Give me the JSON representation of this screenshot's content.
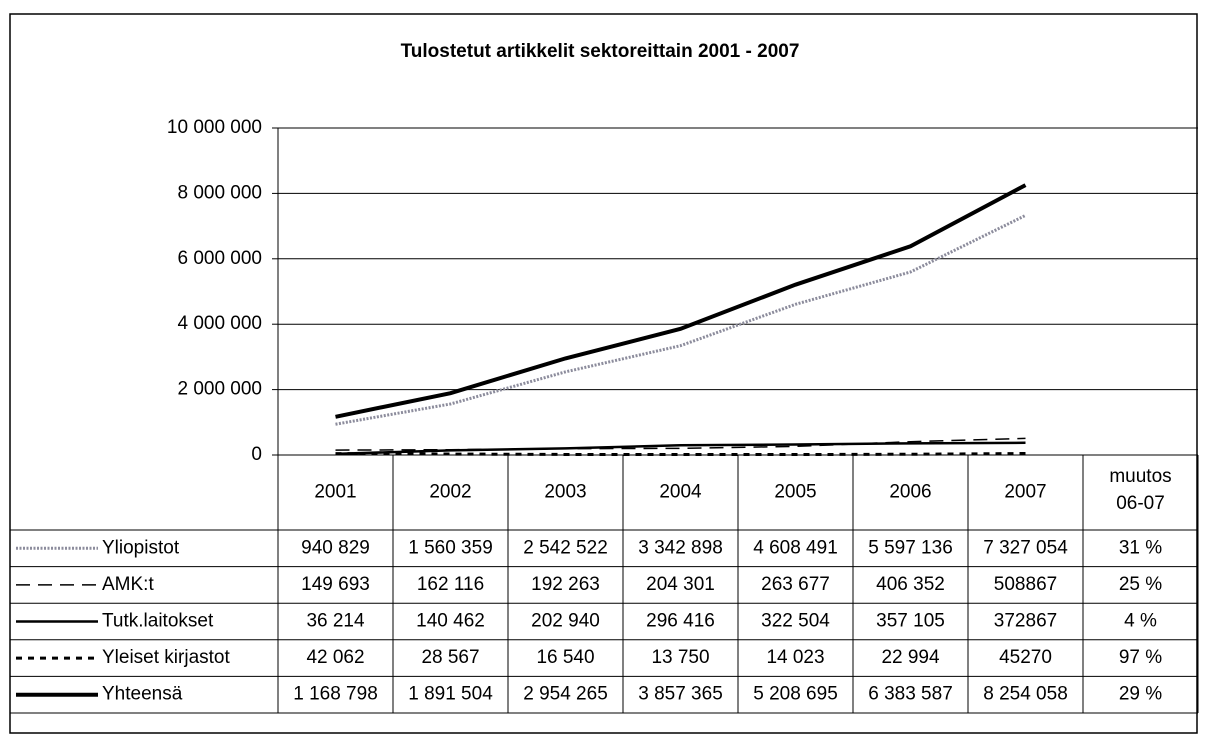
{
  "chart_data": {
    "type": "line",
    "title": "Tulostetut artikkelit sektoreittain 2001 - 2007",
    "categories": [
      "2001",
      "2002",
      "2003",
      "2004",
      "2005",
      "2006",
      "2007"
    ],
    "change_header": "muutos 06-07",
    "ylim": [
      0,
      10000000
    ],
    "yticks": [
      0,
      {
        "value": 2000000,
        "label": "2 000 000"
      },
      {
        "value": 4000000,
        "label": "4 000 000"
      },
      {
        "value": 6000000,
        "label": "6 000 000"
      },
      {
        "value": 8000000,
        "label": "8 000 000"
      },
      {
        "value": 10000000,
        "label": "10 000 000"
      }
    ],
    "grid": true,
    "series": [
      {
        "name": "Yliopistot",
        "color": "#8c8c9c",
        "values": [
          940829,
          1560359,
          2542522,
          3342898,
          4608491,
          5597136,
          7327054
        ],
        "value_labels": [
          "940 829",
          "1 560 359",
          "2 542 522",
          "3 342 898",
          "4 608 491",
          "5 597 136",
          "7 327 054"
        ],
        "change": 31,
        "change_label": "31 %"
      },
      {
        "name": "AMK:t",
        "color": "#000000",
        "values": [
          149693,
          162116,
          192263,
          204301,
          263677,
          406352,
          508867
        ],
        "value_labels": [
          "149 693",
          "162 116",
          "192 263",
          "204 301",
          "263 677",
          "406 352",
          "508867"
        ],
        "change": 25,
        "change_label": "25 %"
      },
      {
        "name": "Tutk.laitokset",
        "color": "#000000",
        "values": [
          36214,
          140462,
          202940,
          296416,
          322504,
          357105,
          372867
        ],
        "value_labels": [
          "36 214",
          "140 462",
          "202 940",
          "296 416",
          "322 504",
          "357 105",
          "372867"
        ],
        "change": 4,
        "change_label": "4 %"
      },
      {
        "name": "Yleiset kirjastot",
        "color": "#000000",
        "values": [
          42062,
          28567,
          16540,
          13750,
          14023,
          22994,
          45270
        ],
        "value_labels": [
          "42 062",
          "28 567",
          "16 540",
          "13 750",
          "14 023",
          "22 994",
          "45270"
        ],
        "change": 97,
        "change_label": "97 %"
      },
      {
        "name": "Yhteensä",
        "color": "#000000",
        "values": [
          1168798,
          1891504,
          2954265,
          3857365,
          5208695,
          6383587,
          8254058
        ],
        "value_labels": [
          "1 168 798",
          "1 891 504",
          "2 954 265",
          "3 857 365",
          "5 208 695",
          "6 383 587",
          "8 254 058"
        ],
        "change": 29,
        "change_label": "29 %"
      }
    ]
  }
}
